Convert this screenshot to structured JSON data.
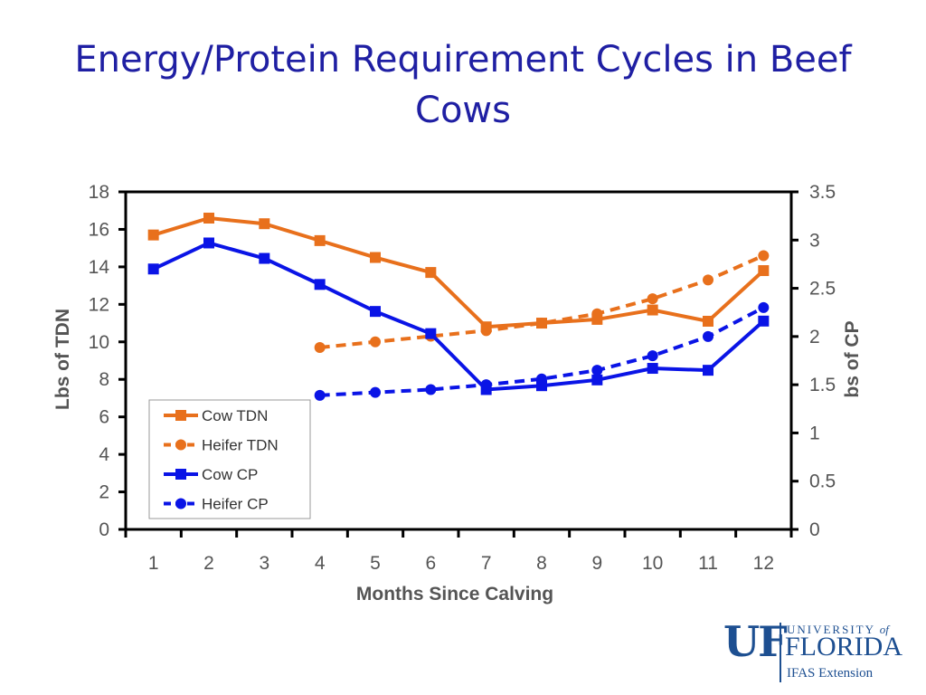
{
  "slide": {
    "title": "Energy/Protein Requirement Cycles in Beef Cows"
  },
  "logo": {
    "mark": "UF",
    "university": "UNIVERSITY",
    "of": "of",
    "name": "FLORIDA",
    "unit": "IFAS Extension",
    "color": "#1d4f91"
  },
  "chart_data": {
    "type": "line",
    "title": "",
    "xlabel": "Months Since Calving",
    "ylabel": "Lbs of TDN",
    "y2label": "bs of CP",
    "categories": [
      "1",
      "2",
      "3",
      "4",
      "5",
      "6",
      "7",
      "8",
      "9",
      "10",
      "11",
      "12"
    ],
    "ylim": [
      0,
      18
    ],
    "yticks": [
      "0",
      "2",
      "4",
      "6",
      "8",
      "10",
      "12",
      "14",
      "16",
      "18"
    ],
    "y2lim": [
      0,
      3.5
    ],
    "y2ticks": [
      "0",
      "0.5",
      "1",
      "1.5",
      "2",
      "2.5",
      "3",
      "3.5"
    ],
    "grid": false,
    "legend_position": "bottom-left",
    "series": [
      {
        "name": "Cow TDN",
        "axis": "left",
        "color": "#e8701c",
        "dash": false,
        "marker": "square",
        "values": [
          15.7,
          16.6,
          16.3,
          15.4,
          14.5,
          13.7,
          10.8,
          11.0,
          11.2,
          11.7,
          11.1,
          13.8
        ]
      },
      {
        "name": "Heifer TDN",
        "axis": "left",
        "color": "#e8701c",
        "dash": true,
        "marker": "circle",
        "values": [
          null,
          null,
          null,
          9.7,
          10.0,
          10.3,
          10.6,
          11.0,
          11.5,
          12.3,
          13.3,
          14.6
        ]
      },
      {
        "name": "Cow CP",
        "axis": "right",
        "color": "#0a14e6",
        "dash": false,
        "marker": "square",
        "values": [
          2.7,
          2.97,
          2.81,
          2.54,
          2.26,
          2.03,
          1.45,
          1.49,
          1.55,
          1.67,
          1.65,
          2.16
        ]
      },
      {
        "name": "Heifer CP",
        "axis": "right",
        "color": "#0a14e6",
        "dash": true,
        "marker": "circle",
        "values": [
          null,
          null,
          null,
          1.39,
          1.42,
          1.45,
          1.5,
          1.56,
          1.65,
          1.8,
          2.0,
          2.3
        ]
      }
    ]
  }
}
